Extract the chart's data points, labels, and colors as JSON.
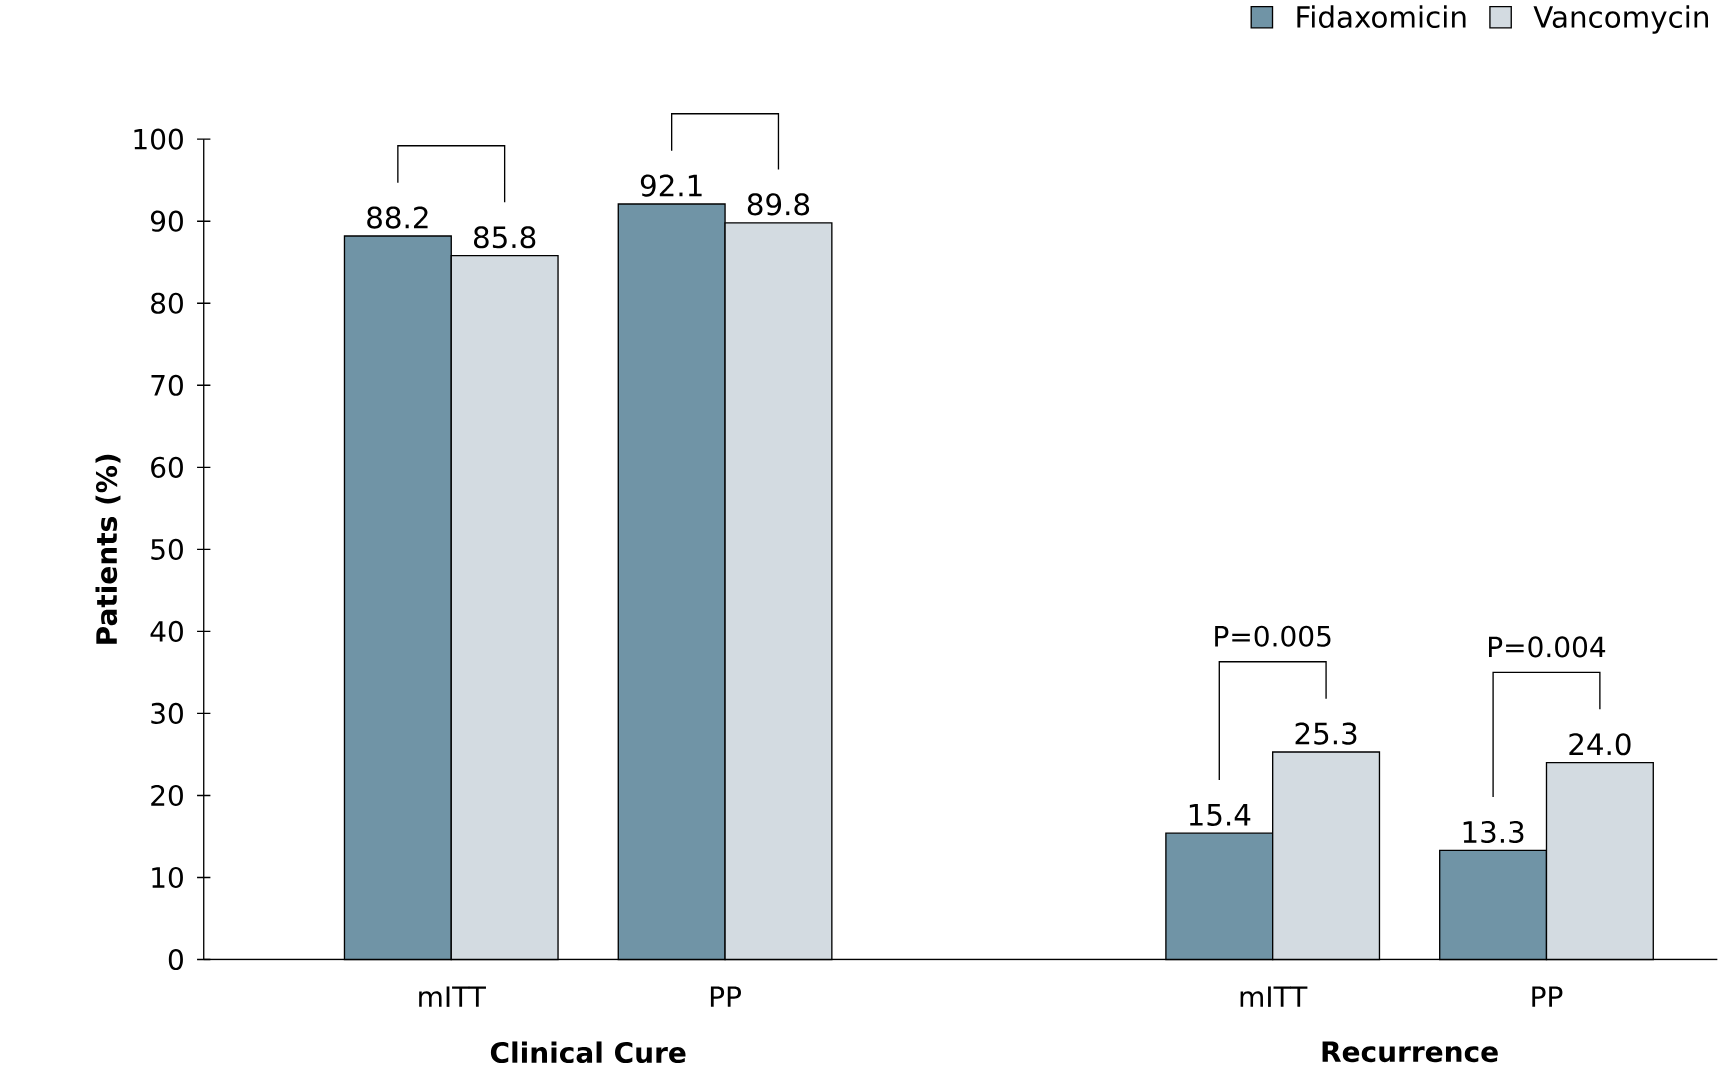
{
  "chart_data": {
    "type": "bar",
    "ylabel": "Patients (%)",
    "categories": [
      "mITT",
      "PP",
      null,
      "mITT",
      "PP"
    ],
    "series": [
      {
        "name": "Fidaxomicin",
        "color": "#7094a6",
        "values": [
          88.2,
          92.1,
          null,
          15.4,
          13.3
        ],
        "value_labels": [
          "88.2",
          "92.1",
          null,
          "15.4",
          "13.3"
        ]
      },
      {
        "name": "Vancomycin",
        "color": "#d3dbe1",
        "values": [
          85.8,
          89.8,
          null,
          25.3,
          24.0
        ],
        "value_labels": [
          "85.8",
          "89.8",
          null,
          "25.3",
          "24.0"
        ]
      }
    ],
    "ylim": [
      0,
      100
    ],
    "yticks": [
      0,
      10,
      20,
      30,
      40,
      50,
      60,
      70,
      80,
      90,
      100
    ],
    "legend": "top right",
    "grid": false,
    "annotations": [
      "Clinical Cure",
      "Recurrence",
      "P=0.005",
      "P=0.004"
    ]
  }
}
